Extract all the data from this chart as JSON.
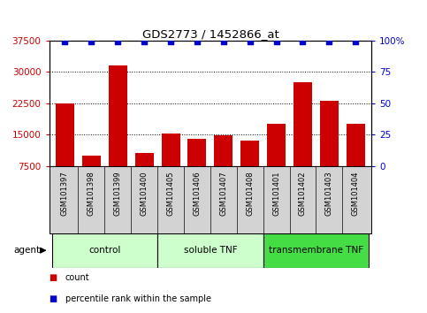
{
  "title": "GDS2773 / 1452866_at",
  "categories": [
    "GSM101397",
    "GSM101398",
    "GSM101399",
    "GSM101400",
    "GSM101405",
    "GSM101406",
    "GSM101407",
    "GSM101408",
    "GSM101401",
    "GSM101402",
    "GSM101403",
    "GSM101404"
  ],
  "bar_values": [
    22500,
    10000,
    31500,
    10500,
    15200,
    14000,
    14800,
    13500,
    17500,
    27500,
    23000,
    17500
  ],
  "bar_color": "#cc0000",
  "dot_color": "#0000cc",
  "ylim_left": [
    7500,
    37500
  ],
  "ylim_right": [
    0,
    100
  ],
  "yticks_left": [
    7500,
    15000,
    22500,
    30000,
    37500
  ],
  "ytick_labels_left": [
    "7500",
    "15000",
    "22500",
    "30000",
    "37500"
  ],
  "yticks_right": [
    0,
    25,
    50,
    75,
    100
  ],
  "ytick_labels_right": [
    "0",
    "25",
    "50",
    "75",
    "100%"
  ],
  "group_configs": [
    {
      "label": "control",
      "start": 0,
      "end": 3,
      "color": "#ccffcc"
    },
    {
      "label": "soluble TNF",
      "start": 4,
      "end": 7,
      "color": "#ccffcc"
    },
    {
      "label": "transmembrane TNF",
      "start": 8,
      "end": 11,
      "color": "#44dd44"
    }
  ],
  "agent_label": "agent",
  "legend_count_label": "count",
  "legend_percentile_label": "percentile rank within the sample",
  "bg_color": "#ffffff",
  "tick_area_color": "#d3d3d3"
}
